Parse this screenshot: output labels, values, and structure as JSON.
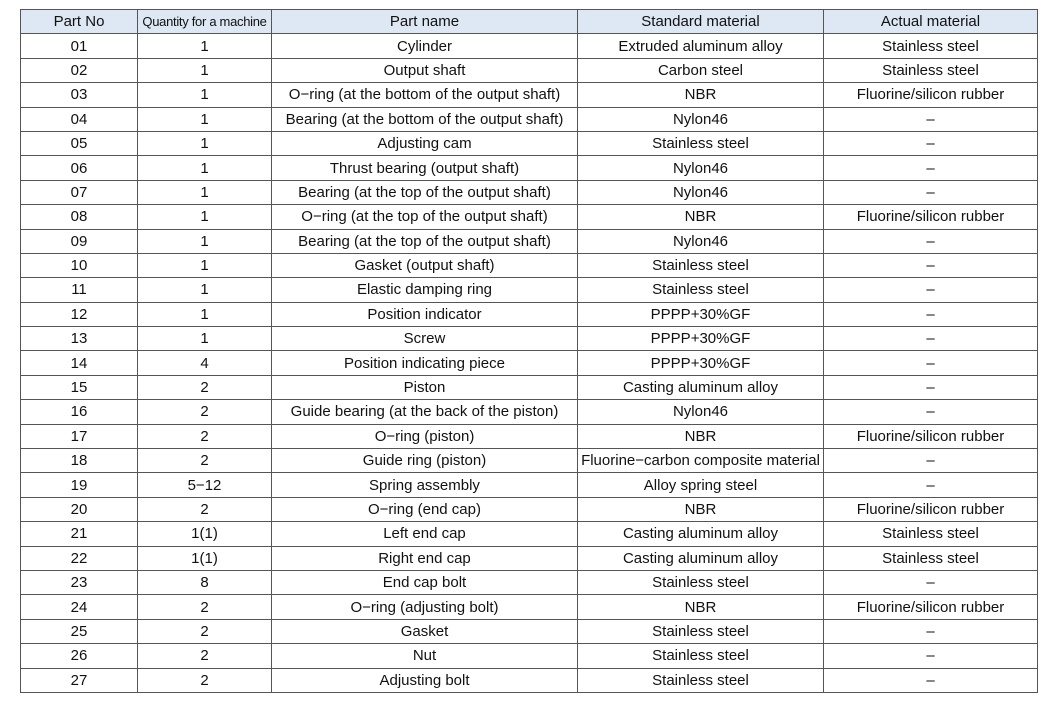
{
  "table": {
    "header": [
      "Part No",
      "Quantity for a machine",
      "Part name",
      "Standard material",
      "Actual material"
    ],
    "rows": [
      [
        "01",
        "1",
        "Cylinder",
        "Extruded aluminum alloy",
        "Stainless steel"
      ],
      [
        "02",
        "1",
        "Output shaft",
        "Carbon steel",
        "Stainless steel"
      ],
      [
        "03",
        "1",
        "O−ring (at the bottom of the output shaft)",
        "NBR",
        "Fluorine/silicon rubber"
      ],
      [
        "04",
        "1",
        "Bearing (at the bottom of the output shaft)",
        "Nylon46",
        "–"
      ],
      [
        "05",
        "1",
        "Adjusting cam",
        "Stainless steel",
        "–"
      ],
      [
        "06",
        "1",
        "Thrust bearing (output shaft)",
        "Nylon46",
        "–"
      ],
      [
        "07",
        "1",
        "Bearing (at the top of the output shaft)",
        "Nylon46",
        "–"
      ],
      [
        "08",
        "1",
        "O−ring (at the top of the output shaft)",
        "NBR",
        "Fluorine/silicon rubber"
      ],
      [
        "09",
        "1",
        "Bearing (at the top of the output shaft)",
        "Nylon46",
        "–"
      ],
      [
        "10",
        "1",
        "Gasket (output shaft)",
        "Stainless steel",
        "–"
      ],
      [
        "11",
        "1",
        "Elastic damping ring",
        "Stainless steel",
        "–"
      ],
      [
        "12",
        "1",
        "Position indicator",
        "PPPP+30%GF",
        "–"
      ],
      [
        "13",
        "1",
        "Screw",
        "PPPP+30%GF",
        "–"
      ],
      [
        "14",
        "4",
        "Position indicating piece",
        "PPPP+30%GF",
        "–"
      ],
      [
        "15",
        "2",
        "Piston",
        "Casting aluminum alloy",
        "–"
      ],
      [
        "16",
        "2",
        "Guide bearing (at the back of the piston)",
        "Nylon46",
        "–"
      ],
      [
        "17",
        "2",
        "O−ring (piston)",
        "NBR",
        "Fluorine/silicon rubber"
      ],
      [
        "18",
        "2",
        "Guide ring (piston)",
        "Fluorine−carbon composite material",
        "–"
      ],
      [
        "19",
        "5−12",
        "Spring assembly",
        "Alloy spring steel",
        "–"
      ],
      [
        "20",
        "2",
        "O−ring (end cap)",
        "NBR",
        "Fluorine/silicon rubber"
      ],
      [
        "21",
        "1(1)",
        "Left end cap",
        "Casting aluminum alloy",
        "Stainless steel"
      ],
      [
        "22",
        "1(1)",
        "Right end cap",
        "Casting aluminum alloy",
        "Stainless steel"
      ],
      [
        "23",
        "8",
        "End cap bolt",
        "Stainless steel",
        "–"
      ],
      [
        "24",
        "2",
        "O−ring (adjusting bolt)",
        "NBR",
        "Fluorine/silicon rubber"
      ],
      [
        "25",
        "2",
        "Gasket",
        "Stainless steel",
        "–"
      ],
      [
        "26",
        "2",
        "Nut",
        "Stainless steel",
        "–"
      ],
      [
        "27",
        "2",
        "Adjusting bolt",
        "Stainless steel",
        "–"
      ]
    ]
  }
}
